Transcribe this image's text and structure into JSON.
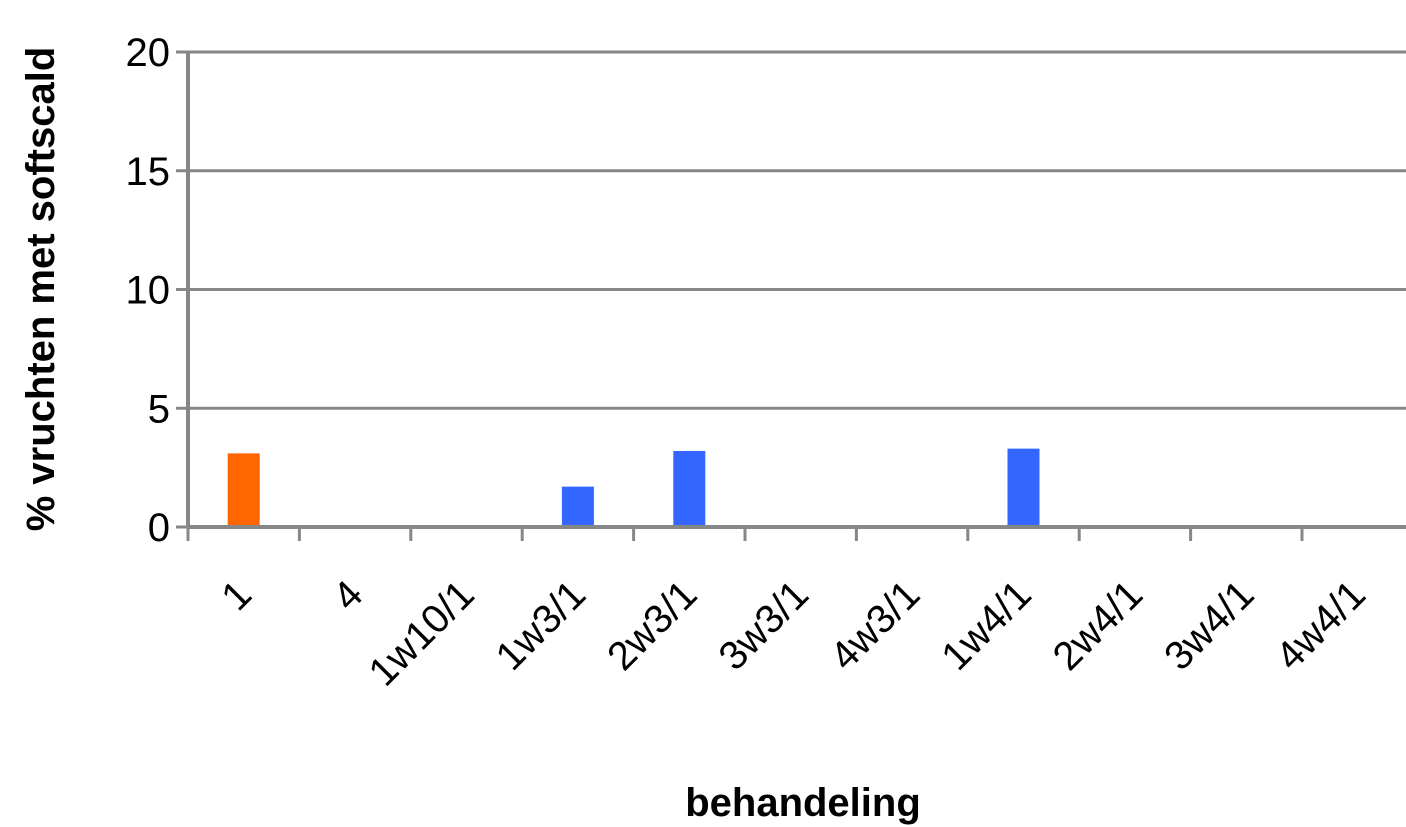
{
  "chart_data": {
    "type": "bar",
    "title": "",
    "xlabel": "behandeling",
    "ylabel": "% vruchten met softscald",
    "ylim": [
      0,
      20
    ],
    "yticks": [
      0,
      5,
      10,
      15,
      20
    ],
    "grid": true,
    "legend": "none",
    "categories": [
      "1",
      "4",
      "1w10/1",
      "1w3/1",
      "2w3/1",
      "3w3/1",
      "4w3/1",
      "1w4/1",
      "2w4/1",
      "3w4/1",
      "4w4/1"
    ],
    "values": [
      3.1,
      0,
      0,
      1.7,
      3.2,
      0,
      0,
      3.3,
      0,
      0,
      0
    ],
    "colors": {
      "control": "#ff6600",
      "treatment": "#3366ff",
      "axis": "#878787",
      "grid": "#878787"
    },
    "bar_colors": [
      "control",
      "treatment",
      "treatment",
      "treatment",
      "treatment",
      "treatment",
      "treatment",
      "treatment",
      "treatment",
      "treatment",
      "treatment"
    ]
  }
}
